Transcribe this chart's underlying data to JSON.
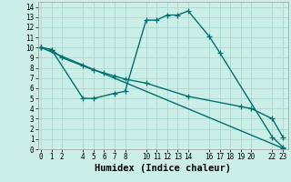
{
  "xlabel": "Humidex (Indice chaleur)",
  "bg_color": "#cceee8",
  "grid_color": "#aad8d0",
  "line_color": "#007070",
  "line1_x": [
    0,
    1,
    4,
    5,
    7,
    8,
    10,
    11,
    12,
    13,
    14,
    16,
    17,
    22,
    23
  ],
  "line1_y": [
    10.0,
    9.8,
    5.0,
    5.0,
    5.5,
    5.7,
    12.7,
    12.7,
    13.2,
    13.2,
    13.6,
    11.1,
    9.5,
    1.2,
    0.2
  ],
  "line2_x": [
    0,
    1,
    2,
    4,
    5,
    6,
    7,
    8,
    10,
    14,
    19,
    20,
    22,
    23
  ],
  "line2_y": [
    10.0,
    9.8,
    9.0,
    8.2,
    7.8,
    7.5,
    7.2,
    6.9,
    6.5,
    5.2,
    4.2,
    4.0,
    3.0,
    1.2
  ],
  "line3_x": [
    0,
    23
  ],
  "line3_y": [
    10.0,
    0.1
  ],
  "xlim": [
    -0.3,
    23.5
  ],
  "ylim": [
    0,
    14.5
  ],
  "xticks": [
    0,
    1,
    2,
    4,
    5,
    6,
    7,
    8,
    10,
    11,
    12,
    13,
    14,
    16,
    17,
    18,
    19,
    20,
    22,
    23
  ],
  "yticks": [
    0,
    1,
    2,
    3,
    4,
    5,
    6,
    7,
    8,
    9,
    10,
    11,
    12,
    13,
    14
  ],
  "xticklabels": [
    "0",
    "1",
    "2",
    "4",
    "5",
    "6",
    "7",
    "8",
    "10",
    "11",
    "12",
    "13",
    "14",
    "16",
    "17",
    "18",
    "19",
    "20",
    "22",
    "23"
  ],
  "yticklabels": [
    "0",
    "1",
    "2",
    "3",
    "4",
    "5",
    "6",
    "7",
    "8",
    "9",
    "10",
    "11",
    "12",
    "13",
    "14"
  ],
  "marker": "+",
  "markersize": 4,
  "linewidth": 1.0,
  "tick_fontsize": 5.5,
  "label_fontsize": 7.5
}
